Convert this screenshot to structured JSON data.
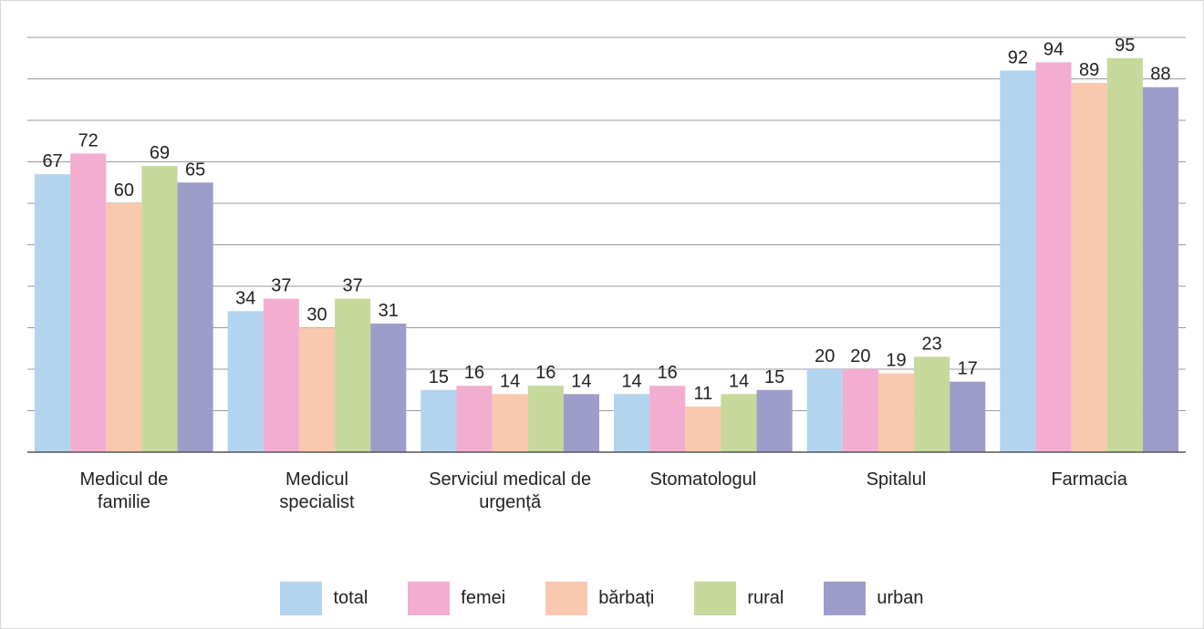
{
  "chart_data": {
    "type": "bar",
    "categories": [
      "Medicul de familie",
      "Medicul specialist",
      "Serviciul medical de urgență",
      "Stomatologul",
      "Spitalul",
      "Farmacia"
    ],
    "series": [
      {
        "name": "total",
        "color": "#b3d4ee",
        "values": [
          67,
          34,
          15,
          14,
          20,
          92
        ]
      },
      {
        "name": "femei",
        "color": "#f3add0",
        "values": [
          72,
          37,
          16,
          16,
          20,
          94
        ]
      },
      {
        "name": "bărbați",
        "color": "#f9c8ae",
        "values": [
          60,
          30,
          14,
          11,
          19,
          89
        ]
      },
      {
        "name": "rural",
        "color": "#c6d99a",
        "values": [
          69,
          37,
          16,
          14,
          23,
          95
        ]
      },
      {
        "name": "urban",
        "color": "#9e9dc9",
        "values": [
          65,
          31,
          14,
          15,
          17,
          88
        ]
      }
    ],
    "ylim": [
      0,
      100
    ],
    "yticks": [
      0,
      10,
      20,
      30,
      40,
      50,
      60,
      70,
      80,
      90,
      100
    ],
    "grid": true
  }
}
